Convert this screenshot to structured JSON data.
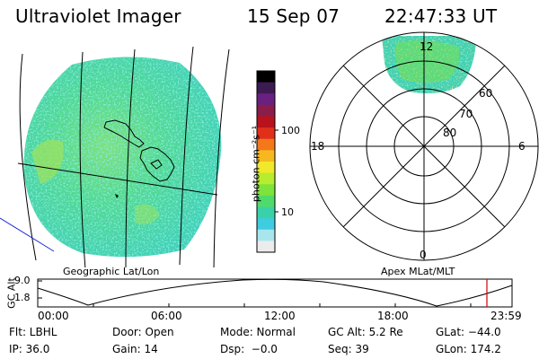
{
  "header": {
    "instrument": "Ultraviolet Imager",
    "date": "15 Sep 07",
    "time": "22:47:33 UT"
  },
  "colorbar": {
    "label": "photon cm⁻²s⁻¹",
    "ticks": [
      "100",
      "10"
    ],
    "colors": [
      "#000000",
      "#3c1a52",
      "#6a2080",
      "#8a1d4a",
      "#b8121c",
      "#e0301a",
      "#f4781a",
      "#f6b81e",
      "#f0e82a",
      "#b8ec2e",
      "#7ee33a",
      "#4edb6a",
      "#3bd1a8",
      "#3fcce0",
      "#a8e6ee",
      "#ececec"
    ]
  },
  "panels": {
    "left_label": "Geographic Lat/Lon",
    "right_label": "Apex MLat/MLT"
  },
  "polar": {
    "ring_labels": [
      "60",
      "70",
      "80"
    ],
    "mlt_labels": [
      "12",
      "18",
      "6",
      "0"
    ]
  },
  "altitude": {
    "axis_title": "GC Alt",
    "y_ticks": [
      "9.0",
      "1.8"
    ],
    "x_ticks": [
      "00:00",
      "06:00",
      "12:00",
      "18:00",
      "23:59"
    ],
    "marker_color": "#d00000"
  },
  "footer": {
    "row1": [
      "Flt: LBHL",
      "Door: Open",
      "Mode: Normal",
      "GC Alt: 5.2 Re",
      "GLat: −44.0"
    ],
    "row2": [
      "IP: 36.0",
      "Gain: 14",
      "Dsp:  −0.0",
      "Seq: 39",
      "GLon: 174.2"
    ]
  }
}
